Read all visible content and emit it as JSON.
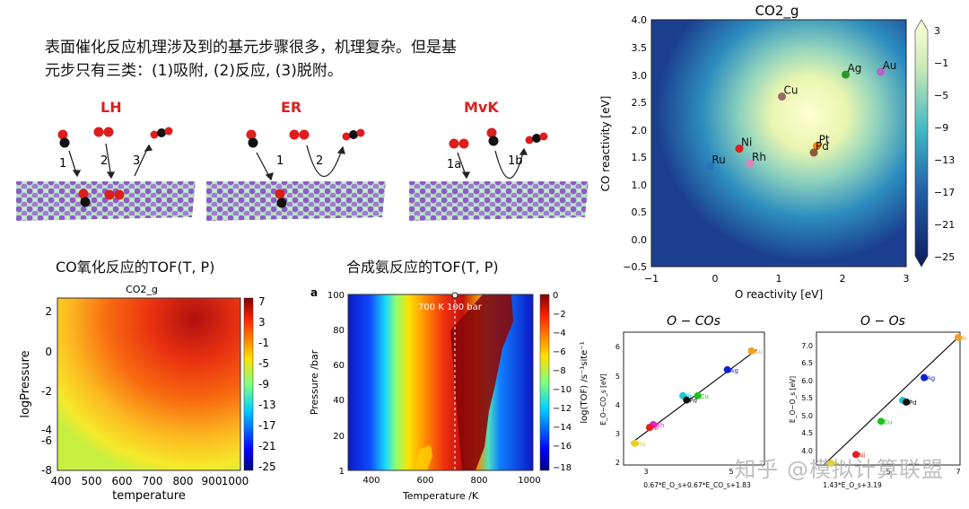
{
  "intro": {
    "line1": "表面催化反应机理涉及到的基元步骤很多，机理复杂。但是基",
    "line2": "元步只有三类：(1)吸附, (2)反应, (3)脱附。"
  },
  "mechanisms": [
    {
      "name": "LH",
      "steps": [
        "1",
        "2",
        "3"
      ]
    },
    {
      "name": "ER",
      "steps": [
        "1",
        "2"
      ]
    },
    {
      "name": "MvK",
      "steps": [
        "1a",
        "1b"
      ]
    }
  ],
  "co_tof": {
    "heading": "CO氧化反应的TOF(T, P)",
    "title": "CO2_g",
    "xlabel": "temperature",
    "ylabel": "logPressure",
    "xticks": [
      "400",
      "500",
      "600",
      "700",
      "800",
      "900",
      "1000"
    ],
    "yticks": [
      "2",
      "0",
      "-2",
      "-4",
      "-6",
      "-8"
    ],
    "cbar_ticks": [
      "7",
      "3",
      "-1",
      "-5",
      "-9",
      "-13",
      "-17",
      "-21",
      "-25"
    ]
  },
  "nh3_tof": {
    "heading": "合成氨反应的TOF(T, P)",
    "panel_label": "a",
    "annotation": "700 K 100 bar",
    "xlabel": "Temperature /K",
    "ylabel": "Pressure /bar",
    "xticks": [
      "400",
      "600",
      "800",
      "1000"
    ],
    "yticks": [
      "100",
      "80",
      "60",
      "40",
      "20",
      "1"
    ],
    "cbar_label": "log(TOF) /s⁻¹site⁻¹",
    "cbar_ticks": [
      "0",
      "−2",
      "−4",
      "−6",
      "−8",
      "−10",
      "−12",
      "−14",
      "−16",
      "−18"
    ]
  },
  "volcano": {
    "title": "CO2_g",
    "xlabel": "O reactivity [eV]",
    "ylabel": "CO reactivity [eV]",
    "xticks": [
      "−1",
      "0",
      "1",
      "2",
      "3"
    ],
    "yticks": [
      "4.0",
      "3.5",
      "3.0",
      "2.5",
      "2.0",
      "1.5",
      "1.0",
      "0.5",
      "0.0",
      "−0.5"
    ],
    "cbar_ticks": [
      "3",
      "−1",
      "−5",
      "−9",
      "−13",
      "−17",
      "−21",
      "−25"
    ]
  },
  "chart_data": [
    {
      "type": "scatter",
      "title": "CO2_g",
      "xlabel": "O reactivity [eV]",
      "ylabel": "CO reactivity [eV]",
      "xlim": [
        -1,
        3
      ],
      "ylim": [
        -0.5,
        4.0
      ],
      "points": [
        {
          "label": "Au",
          "x": 2.6,
          "y": 3.05,
          "color": "#b565c4"
        },
        {
          "label": "Ag",
          "x": 2.05,
          "y": 3.0,
          "color": "#2a9a2a"
        },
        {
          "label": "Cu",
          "x": 1.05,
          "y": 2.6,
          "color": "#9a6a6a"
        },
        {
          "label": "Pt",
          "x": 1.6,
          "y": 1.7,
          "color": "#ff7a00"
        },
        {
          "label": "Pd",
          "x": 1.55,
          "y": 1.58,
          "color": "#8a5a3a"
        },
        {
          "label": "Ni",
          "x": 0.38,
          "y": 1.65,
          "color": "#dd2020"
        },
        {
          "label": "Rh",
          "x": 0.55,
          "y": 1.38,
          "color": "#e080c0"
        },
        {
          "label": "Ru",
          "x": -0.08,
          "y": 1.33,
          "color": "#2a70c0"
        }
      ]
    },
    {
      "type": "scatter",
      "title": "O − COs",
      "xlabel": "0.67*E_O_s+0.67*E_CO_s+1.83",
      "ylabel": "E_O−CO_s [eV]",
      "xticks": [
        "3",
        "5"
      ],
      "yticks": [
        "2",
        "3",
        "4",
        "5",
        "6"
      ],
      "xlim": [
        2.4,
        6.2
      ],
      "ylim": [
        1.8,
        6.4
      ],
      "fit": [
        [
          2.6,
          2.55
        ],
        [
          6.0,
          5.8
        ]
      ],
      "points": [
        {
          "label": "Au",
          "x": 5.85,
          "y": 5.75,
          "color": "#f5a020"
        },
        {
          "label": "Ag",
          "x": 5.2,
          "y": 5.1,
          "color": "#1020d0"
        },
        {
          "label": "Cu",
          "x": 4.4,
          "y": 4.2,
          "color": "#20c020"
        },
        {
          "label": "Pt",
          "x": 4.0,
          "y": 4.2,
          "color": "#20c8d8"
        },
        {
          "label": "Pd",
          "x": 4.1,
          "y": 4.05,
          "color": "#111111"
        },
        {
          "label": "Rh",
          "x": 3.2,
          "y": 3.2,
          "color": "#e020e0"
        },
        {
          "label": "Ni",
          "x": 3.1,
          "y": 3.1,
          "color": "#e02020"
        },
        {
          "label": "Ru",
          "x": 2.7,
          "y": 2.55,
          "color": "#e8d030"
        }
      ]
    },
    {
      "type": "scatter",
      "title": "O − Os",
      "xlabel": "1.43*E_O_s+3.19",
      "ylabel": "E_O−O_s [eV]",
      "xticks": [
        "5",
        "7"
      ],
      "yticks": [
        "4.0",
        "4.5",
        "5.0",
        "5.5",
        "6.0",
        "6.5",
        "7.0"
      ],
      "xlim": [
        3.0,
        7.0
      ],
      "ylim": [
        3.5,
        7.3
      ],
      "fit": [
        [
          3.2,
          3.5
        ],
        [
          7.0,
          7.2
        ]
      ],
      "points": [
        {
          "label": "Au",
          "x": 6.95,
          "y": 7.15,
          "color": "#f5a020"
        },
        {
          "label": "Ag",
          "x": 6.0,
          "y": 6.0,
          "color": "#1020d0"
        },
        {
          "label": "Pt",
          "x": 5.4,
          "y": 5.35,
          "color": "#20c8d8"
        },
        {
          "label": "Pd",
          "x": 5.5,
          "y": 5.3,
          "color": "#111111"
        },
        {
          "label": "Cu",
          "x": 4.8,
          "y": 4.75,
          "color": "#20c020"
        },
        {
          "label": "Ni",
          "x": 4.1,
          "y": 3.8,
          "color": "#e02020"
        },
        {
          "label": "Ru",
          "x": 3.4,
          "y": 3.55,
          "color": "#e8d030"
        }
      ]
    }
  ],
  "watermark": "知乎 @模拟计算联盟"
}
